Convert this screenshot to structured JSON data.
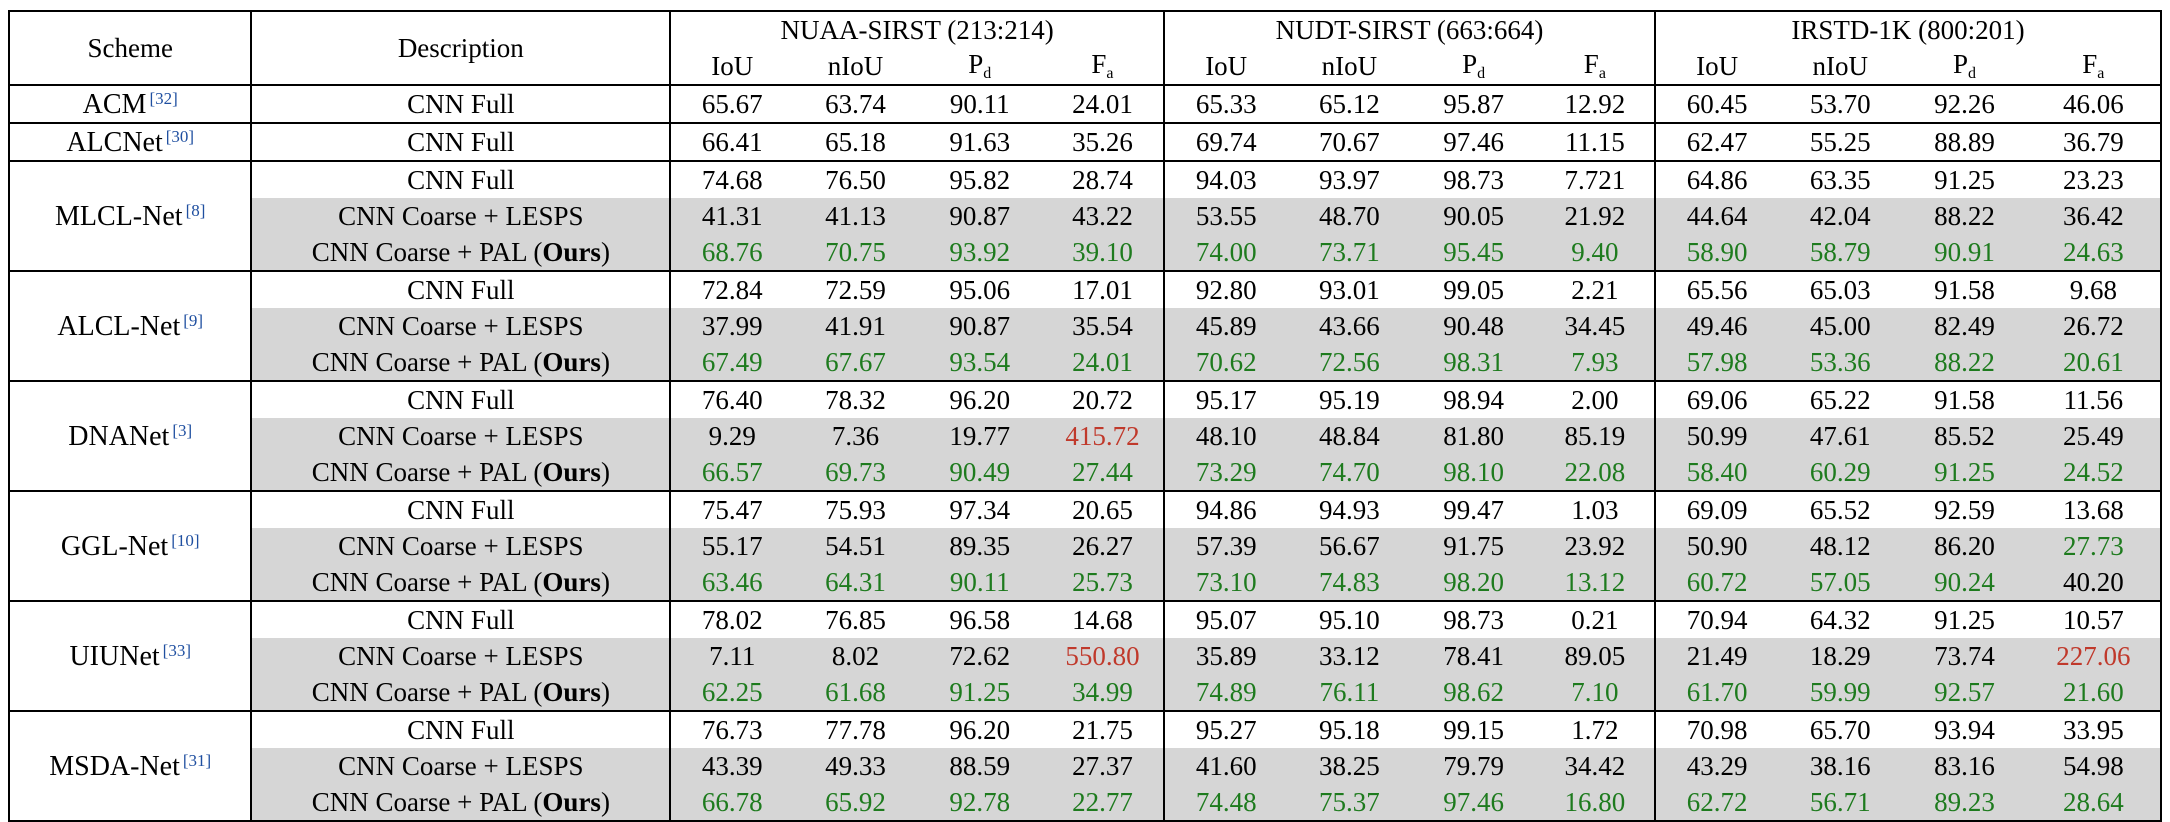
{
  "header": {
    "scheme": "Scheme",
    "description": "Description",
    "datasets": [
      {
        "name": "NUAA-SIRST (213:214)"
      },
      {
        "name": "NUDT-SIRST (663:664)"
      },
      {
        "name": "IRSTD-1K (800:201)"
      }
    ],
    "metrics": [
      {
        "base": "IoU",
        "sub": ""
      },
      {
        "base": "nIoU",
        "sub": ""
      },
      {
        "base": "P",
        "sub": "d"
      },
      {
        "base": "F",
        "sub": "a"
      }
    ]
  },
  "text": {
    "ours": "Ours",
    "pal_prefix": "CNN Coarse + PAL (",
    "pal_suffix": ")"
  },
  "groups": [
    {
      "scheme": "ACM",
      "ref": "[32]",
      "rows": [
        {
          "desc": "CNN Full",
          "kind": "full",
          "values": [
            "65.67",
            "63.74",
            "90.11",
            "24.01",
            "65.33",
            "65.12",
            "95.87",
            "12.92",
            "60.45",
            "53.70",
            "92.26",
            "46.06"
          ]
        }
      ]
    },
    {
      "scheme": "ALCNet",
      "ref": "[30]",
      "rows": [
        {
          "desc": "CNN Full",
          "kind": "full",
          "values": [
            "66.41",
            "65.18",
            "91.63",
            "35.26",
            "69.74",
            "70.67",
            "97.46",
            "11.15",
            "62.47",
            "55.25",
            "88.89",
            "36.79"
          ]
        }
      ]
    },
    {
      "scheme": "MLCL-Net",
      "ref": "[8]",
      "rows": [
        {
          "desc": "CNN Full",
          "kind": "full",
          "values": [
            "74.68",
            "76.50",
            "95.82",
            "28.74",
            "94.03",
            "93.97",
            "98.73",
            "7.721",
            "64.86",
            "63.35",
            "91.25",
            "23.23"
          ]
        },
        {
          "desc": "CNN Coarse + LESPS",
          "kind": "lesps",
          "values": [
            "41.31",
            "41.13",
            "90.87",
            "43.22",
            "53.55",
            "48.70",
            "90.05",
            "21.92",
            "44.64",
            "42.04",
            "88.22",
            "36.42"
          ]
        },
        {
          "desc": "CNN Coarse + PAL (Ours)",
          "kind": "pal",
          "values": [
            "68.76",
            "70.75",
            "93.92",
            "39.10",
            "74.00",
            "73.71",
            "95.45",
            "9.40",
            "58.90",
            "58.79",
            "90.91",
            "24.63"
          ]
        }
      ]
    },
    {
      "scheme": "ALCL-Net",
      "ref": "[9]",
      "rows": [
        {
          "desc": "CNN Full",
          "kind": "full",
          "values": [
            "72.84",
            "72.59",
            "95.06",
            "17.01",
            "92.80",
            "93.01",
            "99.05",
            "2.21",
            "65.56",
            "65.03",
            "91.58",
            "9.68"
          ]
        },
        {
          "desc": "CNN Coarse + LESPS",
          "kind": "lesps",
          "values": [
            "37.99",
            "41.91",
            "90.87",
            "35.54",
            "45.89",
            "43.66",
            "90.48",
            "34.45",
            "49.46",
            "45.00",
            "82.49",
            "26.72"
          ]
        },
        {
          "desc": "CNN Coarse + PAL (Ours)",
          "kind": "pal",
          "values": [
            "67.49",
            "67.67",
            "93.54",
            "24.01",
            "70.62",
            "72.56",
            "98.31",
            "7.93",
            "57.98",
            "53.36",
            "88.22",
            "20.61"
          ]
        }
      ]
    },
    {
      "scheme": "DNANet",
      "ref": "[3]",
      "rows": [
        {
          "desc": "CNN Full",
          "kind": "full",
          "values": [
            "76.40",
            "78.32",
            "96.20",
            "20.72",
            "95.17",
            "95.19",
            "98.94",
            "2.00",
            "69.06",
            "65.22",
            "91.58",
            "11.56"
          ]
        },
        {
          "desc": "CNN Coarse + LESPS",
          "kind": "lesps",
          "values": [
            "9.29",
            "7.36",
            "19.77",
            "415.72",
            "48.10",
            "48.84",
            "81.80",
            "85.19",
            "50.99",
            "47.61",
            "85.52",
            "25.49"
          ],
          "red": [
            3
          ]
        },
        {
          "desc": "CNN Coarse + PAL (Ours)",
          "kind": "pal",
          "values": [
            "66.57",
            "69.73",
            "90.49",
            "27.44",
            "73.29",
            "74.70",
            "98.10",
            "22.08",
            "58.40",
            "60.29",
            "91.25",
            "24.52"
          ]
        }
      ]
    },
    {
      "scheme": "GGL-Net",
      "ref": "[10]",
      "rows": [
        {
          "desc": "CNN Full",
          "kind": "full",
          "values": [
            "75.47",
            "75.93",
            "97.34",
            "20.65",
            "94.86",
            "94.93",
            "99.47",
            "1.03",
            "69.09",
            "65.52",
            "92.59",
            "13.68"
          ]
        },
        {
          "desc": "CNN Coarse + LESPS",
          "kind": "lesps",
          "values": [
            "55.17",
            "54.51",
            "89.35",
            "26.27",
            "57.39",
            "56.67",
            "91.75",
            "23.92",
            "50.90",
            "48.12",
            "86.20",
            "27.73"
          ],
          "green": [
            11
          ]
        },
        {
          "desc": "CNN Coarse + PAL (Ours)",
          "kind": "pal",
          "values": [
            "63.46",
            "64.31",
            "90.11",
            "25.73",
            "73.10",
            "74.83",
            "98.20",
            "13.12",
            "60.72",
            "57.05",
            "90.24",
            "40.20"
          ],
          "plain": [
            11
          ]
        }
      ]
    },
    {
      "scheme": "UIUNet",
      "ref": "[33]",
      "rows": [
        {
          "desc": "CNN Full",
          "kind": "full",
          "values": [
            "78.02",
            "76.85",
            "96.58",
            "14.68",
            "95.07",
            "95.10",
            "98.73",
            "0.21",
            "70.94",
            "64.32",
            "91.25",
            "10.57"
          ]
        },
        {
          "desc": "CNN Coarse + LESPS",
          "kind": "lesps",
          "values": [
            "7.11",
            "8.02",
            "72.62",
            "550.80",
            "35.89",
            "33.12",
            "78.41",
            "89.05",
            "21.49",
            "18.29",
            "73.74",
            "227.06"
          ],
          "red": [
            3,
            11
          ]
        },
        {
          "desc": "CNN Coarse + PAL (Ours)",
          "kind": "pal",
          "values": [
            "62.25",
            "61.68",
            "91.25",
            "34.99",
            "74.89",
            "76.11",
            "98.62",
            "7.10",
            "61.70",
            "59.99",
            "92.57",
            "21.60"
          ]
        }
      ]
    },
    {
      "scheme": "MSDA-Net",
      "ref": "[31]",
      "rows": [
        {
          "desc": "CNN Full",
          "kind": "full",
          "values": [
            "76.73",
            "77.78",
            "96.20",
            "21.75",
            "95.27",
            "95.18",
            "99.15",
            "1.72",
            "70.98",
            "65.70",
            "93.94",
            "33.95"
          ]
        },
        {
          "desc": "CNN Coarse + LESPS",
          "kind": "lesps",
          "values": [
            "43.39",
            "49.33",
            "88.59",
            "27.37",
            "41.60",
            "38.25",
            "79.79",
            "34.42",
            "43.29",
            "38.16",
            "83.16",
            "54.98"
          ]
        },
        {
          "desc": "CNN Coarse + PAL (Ours)",
          "kind": "pal",
          "values": [
            "66.78",
            "65.92",
            "92.78",
            "22.77",
            "74.48",
            "75.37",
            "97.46",
            "16.80",
            "62.72",
            "56.71",
            "89.23",
            "28.64"
          ]
        }
      ]
    }
  ],
  "colors": {
    "shade": "#d6d6d6",
    "best": "#1e7b1e",
    "worst": "#c0392b",
    "ref": "#1f4fa0"
  }
}
